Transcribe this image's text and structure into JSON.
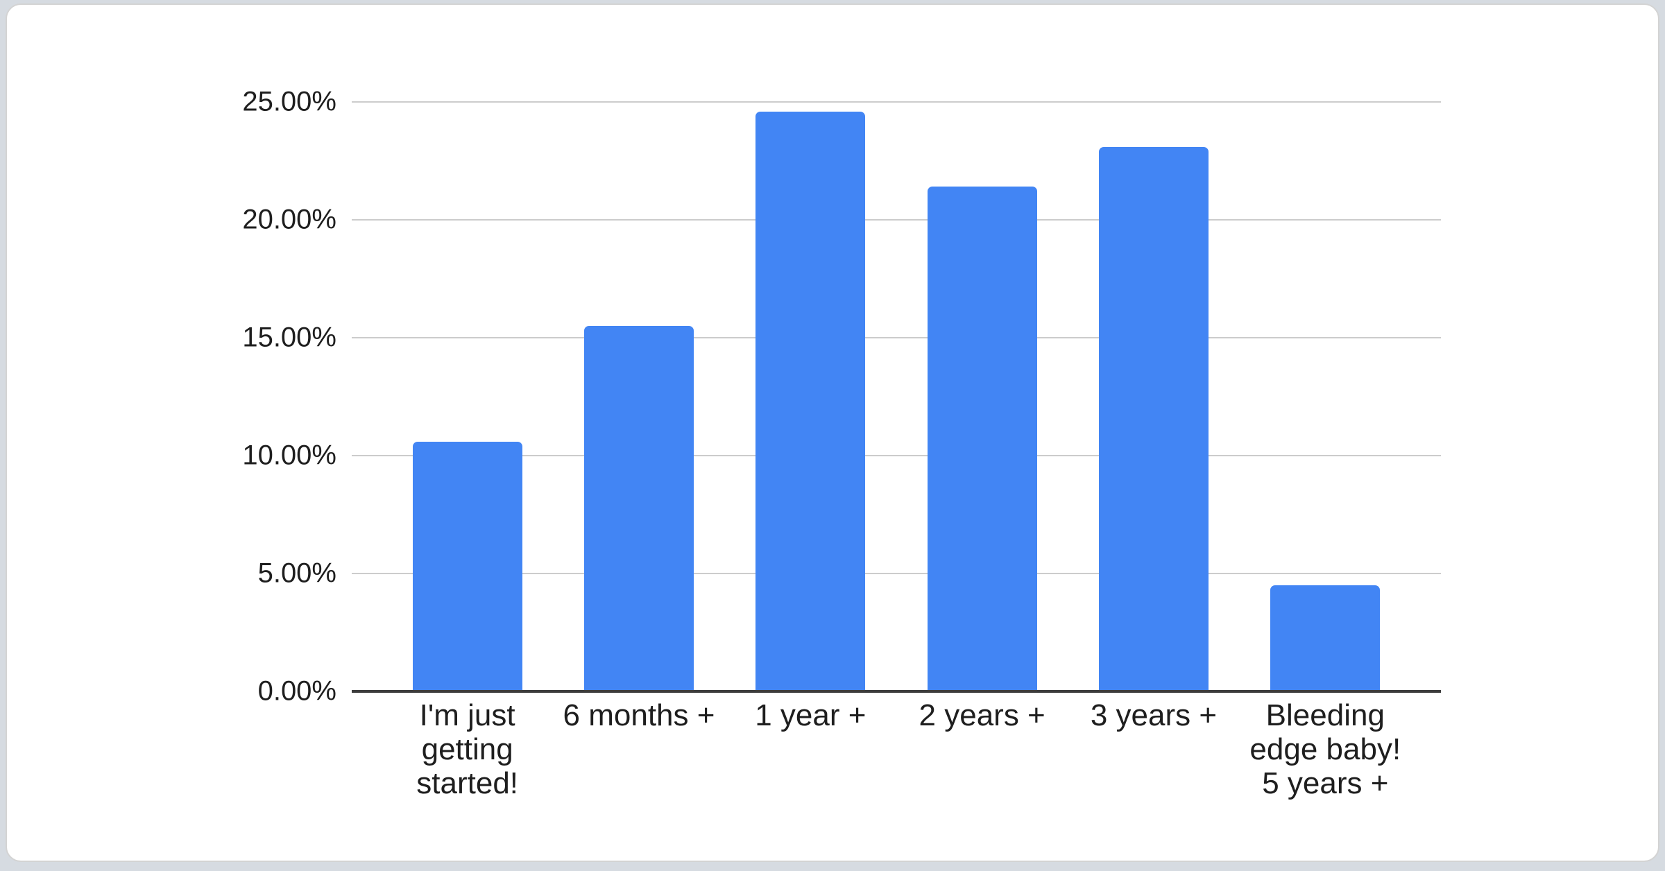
{
  "page": {
    "background": "#d6dbe1"
  },
  "card": {
    "background": "#ffffff",
    "border_color": "#d3d3d3"
  },
  "chart_data": {
    "type": "bar",
    "title": "",
    "xlabel": "",
    "ylabel": "",
    "categories": [
      "I'm just getting started!",
      "6 months +",
      "1 year +",
      "2 years +",
      "3 years +",
      "Bleeding edge baby! 5 years +"
    ],
    "categories_display": [
      "I'm just\ngetting\nstarted!",
      "6 months +",
      "1 year +",
      "2 years +",
      "3 years +",
      "Bleeding\nedge baby!\n5 years +"
    ],
    "values": [
      10.6,
      15.5,
      24.6,
      21.4,
      23.1,
      4.5
    ],
    "value_unit": "%",
    "ylim": [
      0,
      25
    ],
    "yticks": [
      25,
      20,
      15,
      10,
      5,
      0
    ],
    "ytick_labels": [
      "25.00%",
      "20.00%",
      "15.00%",
      "10.00%",
      "5.00%",
      "0.00%"
    ],
    "grid": true,
    "legend": "none",
    "bar_color": "#4285f4",
    "gridline_color": "#cccccc",
    "axis_line_color": "#3c3c3c",
    "label_color": "#1e1e1e"
  }
}
